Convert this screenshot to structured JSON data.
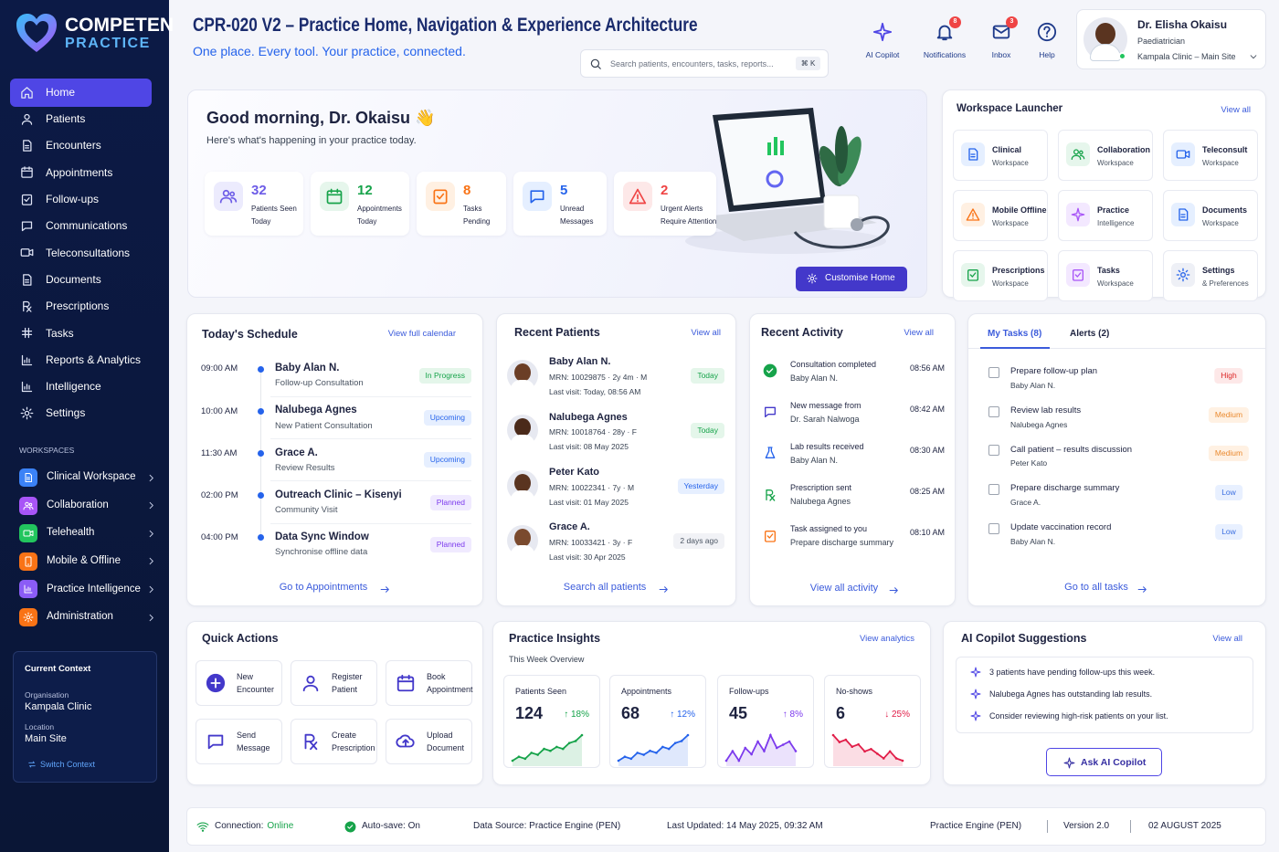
{
  "sidebar": {
    "brand_top": "COMPETEN",
    "brand_bottom": "PRACTICE",
    "nav": [
      "Home",
      "Patients",
      "Encounters",
      "Appointments",
      "Follow-ups",
      "Communications",
      "Teleconsultations",
      "Documents",
      "Prescriptions",
      "Tasks",
      "Reports & Analytics",
      "Intelligence",
      "Settings"
    ],
    "workspaces_heading": "WORKSPACES",
    "workspaces": [
      "Clinical Workspace",
      "Collaboration",
      "Telehealth",
      "Mobile & Offline",
      "Practice Intelligence",
      "Administration"
    ],
    "context": {
      "title": "Current Context",
      "org_label": "Organisation",
      "org": "Kampala Clinic",
      "loc_label": "Location",
      "loc": "Main Site",
      "switch": "Switch Context"
    }
  },
  "header": {
    "title": "CPR-020 V2 – Practice Home, Navigation & Experience Architecture",
    "subtitle": "One place. Every tool. Your practice, connected.",
    "search": "Search patients, encounters, tasks, reports...",
    "shortcut": "⌘ K",
    "actions": [
      {
        "label": "AI Copilot"
      },
      {
        "label": "Notifications",
        "badge": "8"
      },
      {
        "label": "Inbox",
        "badge": "3"
      },
      {
        "label": "Help"
      }
    ],
    "user": {
      "name": "Dr. Elisha Okaisu",
      "role": "Paediatrician",
      "site": "Kampala Clinic – Main Site"
    }
  },
  "hero": {
    "greeting": "Good morning, Dr. Okaisu 👋",
    "subtitle": "Here's what's happening in your practice today.",
    "stats": [
      {
        "value": "32",
        "label": [
          "Patients Seen",
          "Today"
        ]
      },
      {
        "value": "12",
        "label": [
          "Appointments",
          "Today"
        ]
      },
      {
        "value": "8",
        "label": [
          "Tasks",
          "Pending"
        ]
      },
      {
        "value": "5",
        "label": [
          "Unread",
          "Messages"
        ]
      },
      {
        "value": "2",
        "label": [
          "Urgent Alerts",
          "Require Attention"
        ]
      }
    ],
    "button": "Customise Home"
  },
  "launcher": {
    "title": "Workspace Launcher",
    "link": "View all",
    "tiles": [
      {
        "name": "Clinical",
        "sub": "Workspace"
      },
      {
        "name": "Collaboration",
        "sub": "Workspace"
      },
      {
        "name": "Teleconsult",
        "sub": "Workspace"
      },
      {
        "name": "Mobile Offline",
        "sub": "Workspace"
      },
      {
        "name": "Practice",
        "sub": "Intelligence"
      },
      {
        "name": "Documents",
        "sub": "Workspace"
      },
      {
        "name": "Prescriptions",
        "sub": "Workspace"
      },
      {
        "name": "Tasks",
        "sub": "Workspace"
      },
      {
        "name": "Settings",
        "sub": "& Preferences"
      }
    ]
  },
  "schedule": {
    "title": "Today's Schedule",
    "link": "View full calendar",
    "footer": "Go to Appointments",
    "items": [
      {
        "time": "09:00 AM",
        "name": "Baby Alan N.",
        "detail": "Follow-up Consultation",
        "status": "In Progress"
      },
      {
        "time": "10:00 AM",
        "name": "Nalubega Agnes",
        "detail": "New Patient Consultation",
        "status": "Upcoming"
      },
      {
        "time": "11:30 AM",
        "name": "Grace A.",
        "detail": "Review Results",
        "status": "Upcoming"
      },
      {
        "time": "02:00 PM",
        "name": "Outreach Clinic – Kisenyi",
        "detail": "Community Visit",
        "status": "Planned"
      },
      {
        "time": "04:00 PM",
        "name": "Data Sync Window",
        "detail": "Synchronise offline data",
        "status": "Planned"
      }
    ]
  },
  "patients": {
    "title": "Recent Patients",
    "link": "View all",
    "footer": "Search all patients",
    "items": [
      {
        "name": "Baby Alan N.",
        "info": "MRN: 10029875 · 2y 4m · M",
        "last": "Last visit: Today, 08:56 AM",
        "tag": "Today"
      },
      {
        "name": "Nalubega Agnes",
        "info": "MRN: 10018764 · 28y · F",
        "last": "Last visit: 08 May 2025",
        "tag": "Today"
      },
      {
        "name": "Peter Kato",
        "info": "MRN: 10022341 · 7y · M",
        "last": "Last visit: 01 May 2025",
        "tag": "Yesterday"
      },
      {
        "name": "Grace A.",
        "info": "MRN: 10033421 · 3y · F",
        "last": "Last visit: 30 Apr 2025",
        "tag": "2 days ago"
      }
    ]
  },
  "activity": {
    "title": "Recent Activity",
    "link": "View all",
    "footer": "View all activity",
    "items": [
      {
        "title": "Consultation completed",
        "sub": "Baby Alan N.",
        "time": "08:56 AM"
      },
      {
        "title": "New message from",
        "sub": "Dr. Sarah Nalwoga",
        "time": "08:42 AM"
      },
      {
        "title": "Lab results received",
        "sub": "Baby Alan N.",
        "time": "08:30 AM"
      },
      {
        "title": "Prescription sent",
        "sub": "Nalubega Agnes",
        "time": "08:25 AM"
      },
      {
        "title": "Task assigned to you",
        "sub": "Prepare discharge summary",
        "time": "08:10 AM"
      }
    ]
  },
  "tasks": {
    "tabs": [
      "My Tasks (8)",
      "Alerts (2)"
    ],
    "footer": "Go to all tasks",
    "items": [
      {
        "title": "Prepare follow-up plan",
        "sub": "Baby Alan N.",
        "priority": "High"
      },
      {
        "title": "Review lab results",
        "sub": "Nalubega Agnes",
        "priority": "Medium"
      },
      {
        "title": "Call patient – results discussion",
        "sub": "Peter Kato",
        "priority": "Medium"
      },
      {
        "title": "Prepare discharge summary",
        "sub": "Grace A.",
        "priority": "Low"
      },
      {
        "title": "Update vaccination record",
        "sub": "Baby Alan N.",
        "priority": "Low"
      }
    ]
  },
  "quick": {
    "title": "Quick Actions",
    "items": [
      [
        "New",
        "Encounter"
      ],
      [
        "Register",
        "Patient"
      ],
      [
        "Book",
        "Appointment"
      ],
      [
        "Send",
        "Message"
      ],
      [
        "Create",
        "Prescription"
      ],
      [
        "Upload",
        "Document"
      ]
    ]
  },
  "insights": {
    "title": "Practice Insights",
    "link": "View analytics",
    "subtitle": "This Week Overview",
    "cards": [
      {
        "label": "Patients Seen",
        "value": "124",
        "change": "↑ 18%",
        "color": "#16a34a",
        "spark": [
          3,
          4,
          3.5,
          5,
          4.5,
          6,
          5.5,
          6.5,
          6,
          7.5,
          8,
          9.5
        ]
      },
      {
        "label": "Appointments",
        "value": "68",
        "change": "↑ 12%",
        "color": "#2563eb",
        "spark": [
          2,
          3,
          2.5,
          4,
          3.5,
          4.5,
          4,
          5.5,
          5,
          6.5,
          7,
          8.5
        ]
      },
      {
        "label": "Follow-ups",
        "value": "45",
        "change": "↑ 8%",
        "color": "#7c3aed",
        "spark": [
          4,
          5.5,
          4,
          6,
          5,
          7,
          5.5,
          8,
          6,
          6.5,
          7,
          5.5
        ]
      },
      {
        "label": "No-shows",
        "value": "6",
        "change": "↓ 25%",
        "color": "#e11d48",
        "spark": [
          8,
          6.5,
          7,
          5.5,
          6,
          4.5,
          5,
          4,
          3,
          4.5,
          3,
          2.5
        ]
      }
    ]
  },
  "copilot": {
    "title": "AI Copilot Suggestions",
    "link": "View all",
    "button": "Ask AI Copilot",
    "items": [
      "3 patients have pending follow-ups this week.",
      "Nalubega Agnes has outstanding lab results.",
      "Consider reviewing high-risk patients on your list."
    ]
  },
  "footer": {
    "connection_label": "Connection:",
    "connection": "Online",
    "autosave": "Auto-save: On",
    "source": "Data Source: Practice Engine (PEN)",
    "updated": "Last Updated: 14 May 2025, 09:32 AM",
    "engine": "Practice Engine (PEN)",
    "version": "Version 2.0",
    "date": "02 AUGUST 2025"
  }
}
